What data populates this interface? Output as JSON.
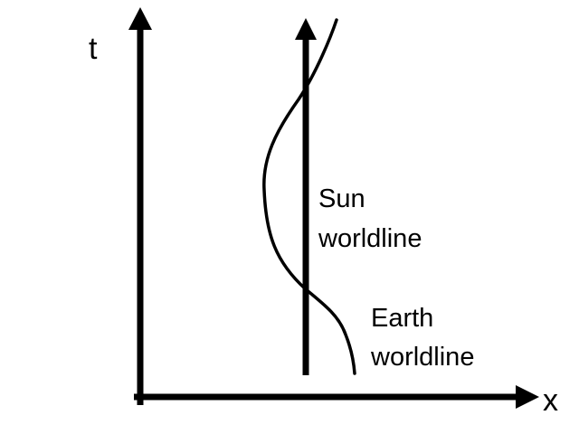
{
  "axes": {
    "vertical_label": "t",
    "horizontal_label": "x"
  },
  "sun": {
    "label_line1": "Sun",
    "label_line2": "worldline"
  },
  "earth": {
    "label_line1": "Earth",
    "label_line2": "worldline"
  },
  "colors": {
    "ink": "#000000",
    "background": "#ffffff"
  }
}
